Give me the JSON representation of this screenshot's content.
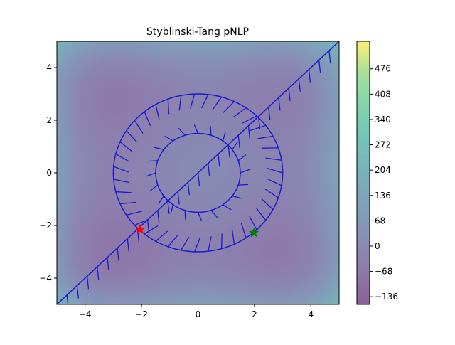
{
  "chart_data": {
    "type": "heatmap",
    "title": "Styblinski-Tang pNLP",
    "xlim": [
      -5,
      5
    ],
    "ylim": [
      -5,
      5
    ],
    "xticks": [
      -4,
      -2,
      0,
      2,
      4
    ],
    "yticks": [
      -4,
      -2,
      0,
      2,
      4
    ],
    "xtick_labels": [
      "−4",
      "−2",
      "0",
      "2",
      "4"
    ],
    "ytick_labels": [
      "−4",
      "−2",
      "0",
      "2",
      "4"
    ],
    "function": "0.5 * sum(x_i^4 - 16 x_i^2 + 5 x_i)",
    "colormap": "viridis",
    "colorbar": {
      "range": [
        -156.66,
        550
      ],
      "ticks": [
        -136,
        -68,
        0,
        68,
        136,
        204,
        272,
        340,
        408,
        476
      ],
      "tick_labels": [
        "−136",
        "−68",
        "0",
        "68",
        "136",
        "204",
        "272",
        "340",
        "408",
        "476"
      ]
    },
    "constraints": [
      {
        "type": "circle",
        "center": [
          0,
          0
        ],
        "radius": 3
      },
      {
        "type": "circle",
        "center": [
          0,
          0
        ],
        "radius": 1.5
      },
      {
        "type": "line",
        "points": [
          [
            -5,
            -5
          ],
          [
            5,
            5
          ]
        ]
      }
    ],
    "markers": [
      {
        "name": "red-star",
        "shape": "star",
        "color": "#ff0000",
        "x": -2.05,
        "y": -2.15
      },
      {
        "name": "green-star",
        "shape": "star",
        "color": "#008000",
        "x": 1.98,
        "y": -2.28
      }
    ]
  },
  "colors": {
    "constraint": "#1a1ad0",
    "axes": "#000000"
  }
}
